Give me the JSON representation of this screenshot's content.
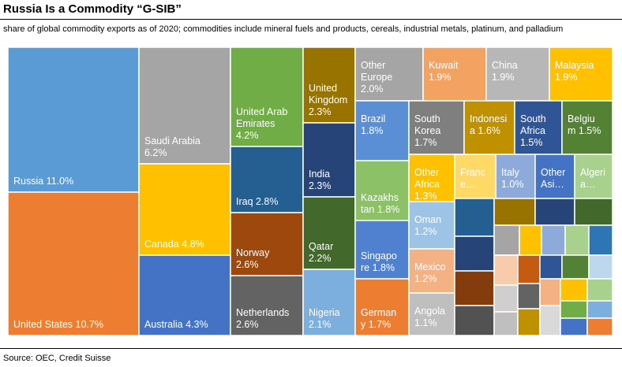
{
  "title": "Russia Is a Commodity “G-SIB”",
  "subtitle": "share of global commodity exports as of 2020; commodities include mineral fuels and products, cereals, industrial metals, platinum, and palladium",
  "source": "Source: OEC, Credit Suisse",
  "chart_data": {
    "type": "treemap",
    "unit": "% of global commodity exports",
    "tiles": [
      {
        "label": "Russia 11.0%",
        "value": 11.0,
        "color": "#5b9bd5"
      },
      {
        "label": "United States 10.7%",
        "value": 10.7,
        "color": "#ed7d31"
      },
      {
        "label": "Saudi Arabia 6.2%",
        "value": 6.2,
        "color": "#a5a5a5"
      },
      {
        "label": "Canada 4.8%",
        "value": 4.8,
        "color": "#ffc000"
      },
      {
        "label": "Australia 4.3%",
        "value": 4.3,
        "color": "#4472c4"
      },
      {
        "label": "United Arab Emirates 4.2%",
        "value": 4.2,
        "color": "#70ad47"
      },
      {
        "label": "Iraq 2.8%",
        "value": 2.8,
        "color": "#255e91"
      },
      {
        "label": "Norway 2.6%",
        "value": 2.6,
        "color": "#9e480e"
      },
      {
        "label": "Netherlands 2.6%",
        "value": 2.6,
        "color": "#636363"
      },
      {
        "label": "United Kingdom 2.3%",
        "value": 2.3,
        "color": "#997300"
      },
      {
        "label": "India 2.3%",
        "value": 2.3,
        "color": "#264478"
      },
      {
        "label": "Qatar 2.2%",
        "value": 2.2,
        "color": "#43682b"
      },
      {
        "label": "Nigeria 2.1%",
        "value": 2.1,
        "color": "#7cafdd"
      },
      {
        "label": "Other Europe 2.0%",
        "value": 2.0,
        "color": "#a5a5a5"
      },
      {
        "label": "Kuwait 1.9%",
        "value": 1.9,
        "color": "#f4a261"
      },
      {
        "label": "China 1.9%",
        "value": 1.9,
        "color": "#b7b7b7"
      },
      {
        "label": "Malaysia 1.9%",
        "value": 1.9,
        "color": "#ffc000"
      },
      {
        "label": "Brazil 1.8%",
        "value": 1.8,
        "color": "#5b8fd5"
      },
      {
        "label": "Kazakhstan 1.8%",
        "value": 1.8,
        "color": "#8cc168"
      },
      {
        "label": "Singapore 1.8%",
        "value": 1.8,
        "color": "#4f81d0"
      },
      {
        "label": "Germany 1.7%",
        "value": 1.7,
        "color": "#ed7d31"
      },
      {
        "label": "South Korea 1.7%",
        "value": 1.7,
        "color": "#7f7f7f"
      },
      {
        "label": "Indonesia 1.6%",
        "value": 1.6,
        "color": "#bf9000"
      },
      {
        "label": "South Africa 1.5%",
        "value": 1.5,
        "color": "#2f5597"
      },
      {
        "label": "Belgium 1.5%",
        "value": 1.5,
        "color": "#548235"
      },
      {
        "label": "Other Africa 1.3%",
        "value": 1.3,
        "color": "#ffc000"
      },
      {
        "label": "Oman 1.2%",
        "value": 1.2,
        "color": "#9dc3e6"
      },
      {
        "label": "Mexico 1.2%",
        "value": 1.2,
        "color": "#f4b183"
      },
      {
        "label": "Angola 1.1%",
        "value": 1.1,
        "color": "#bfbfbf"
      },
      {
        "label": "Italy 1.0%",
        "value": 1.0,
        "color": "#8eaadb"
      },
      {
        "label": "France",
        "value": null,
        "color": "#ffd966"
      },
      {
        "label": "Other Asia",
        "value": null,
        "color": "#4472c4"
      },
      {
        "label": "Algeria",
        "value": null,
        "color": "#a9d18e"
      }
    ]
  }
}
